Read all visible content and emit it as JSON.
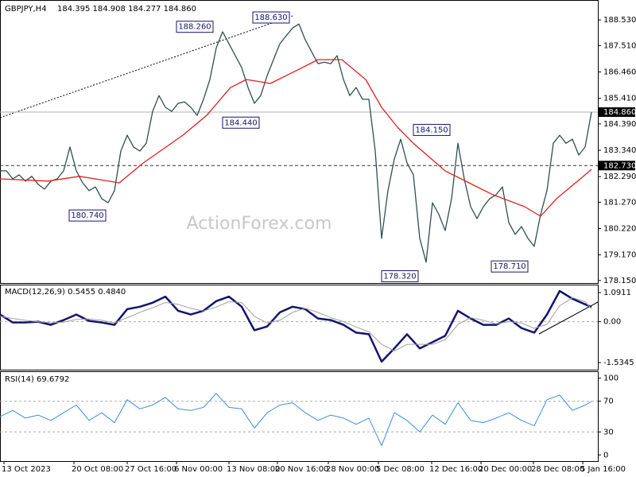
{
  "chart_data": [
    {
      "type": "line",
      "title": "GBPJPY,H4",
      "subtitle": "184.395 184.908 184.277 184.860",
      "watermark": "ActionForex.com",
      "x": [
        0,
        8,
        16,
        24,
        32,
        40,
        48,
        56,
        64,
        72,
        80,
        88,
        96,
        104,
        112,
        120,
        128,
        136,
        144,
        152,
        160,
        168,
        176,
        184,
        192,
        200,
        208,
        216,
        224,
        232,
        240,
        248,
        256,
        264,
        272,
        280,
        288,
        296,
        304,
        312,
        320,
        328,
        336,
        344,
        352,
        360,
        368,
        376,
        384,
        392,
        400,
        408,
        416,
        424,
        432,
        440,
        448,
        456,
        464,
        472,
        480,
        488,
        496,
        504,
        512,
        520,
        528,
        536,
        544,
        552,
        560,
        568,
        576,
        584,
        592,
        600,
        608,
        616,
        624,
        632,
        640,
        648,
        656,
        664,
        672,
        680,
        688,
        696,
        704,
        712,
        720,
        728,
        736,
        744
      ],
      "xlim": [
        0,
        752
      ],
      "ylim": [
        178.05,
        189.2
      ],
      "yticks": [
        {
          "value": 188.53,
          "label": "188.530"
        },
        {
          "value": 187.51,
          "label": "187.510"
        },
        {
          "value": 186.46,
          "label": "186.460"
        },
        {
          "value": 185.41,
          "label": "185.410"
        },
        {
          "value": 184.39,
          "label": "184.390"
        },
        {
          "value": 183.34,
          "label": "183.340"
        },
        {
          "value": 182.29,
          "label": "182.290"
        },
        {
          "value": 181.27,
          "label": "181.270"
        },
        {
          "value": 180.22,
          "label": "180.220"
        },
        {
          "value": 179.17,
          "label": "179.170"
        },
        {
          "value": 178.15,
          "label": "178.150"
        }
      ],
      "series": [
        {
          "color": "#2f4f4f",
          "values": [
            182.52,
            182.52,
            182.2,
            182.36,
            182.11,
            182.3,
            181.98,
            181.79,
            182.11,
            182.2,
            182.52,
            183.47,
            182.52,
            182.04,
            181.73,
            181.88,
            181.41,
            181.25,
            181.73,
            183.31,
            183.94,
            183.47,
            183.31,
            183.62,
            184.89,
            185.52,
            185.05,
            184.89,
            185.21,
            185.27,
            185.05,
            184.73,
            185.37,
            186.16,
            187.42,
            188.06,
            187.58,
            187.11,
            186.63,
            185.84,
            185.21,
            185.52,
            186.31,
            186.95,
            187.58,
            187.9,
            188.21,
            188.37,
            187.74,
            187.26,
            186.79,
            186.85,
            186.79,
            187.11,
            186.16,
            185.52,
            185.84,
            185.37,
            185.37,
            183.31,
            179.83,
            181.73,
            182.99,
            183.78,
            182.83,
            182.36,
            179.83,
            178.88,
            181.25,
            180.78,
            180.14,
            181.41,
            183.62,
            182.2,
            181.09,
            180.62,
            181.09,
            181.41,
            181.57,
            181.88,
            180.46,
            179.99,
            180.3,
            179.83,
            179.51,
            180.78,
            181.73,
            183.62,
            183.94,
            183.62,
            183.78,
            183.15,
            183.47,
            184.86
          ]
        },
        {
          "color": "#e02020",
          "x": [
            0,
            60,
            100,
            150,
            180,
            230,
            260,
            290,
            310,
            340,
            370,
            400,
            430,
            460,
            480,
            500,
            520,
            560,
            590,
            620,
            660,
            680,
            700,
            730,
            744
          ],
          "values": [
            182.2,
            182.11,
            182.3,
            182.04,
            182.83,
            183.94,
            184.73,
            185.84,
            186.16,
            186.0,
            186.47,
            186.95,
            186.95,
            186.16,
            185.05,
            184.26,
            183.62,
            182.52,
            182.04,
            181.57,
            181.09,
            180.71,
            181.41,
            182.2,
            182.58
          ]
        }
      ],
      "levels": [
        {
          "value": 184.86,
          "label": "184.860",
          "style": "solid"
        },
        {
          "value": 182.73,
          "label": "182.730",
          "style": "dashed"
        }
      ],
      "annotations": [
        {
          "value": 188.26,
          "label": "188.260"
        },
        {
          "value": 188.63,
          "label": "188.630"
        },
        {
          "value": 184.44,
          "label": "184.440"
        },
        {
          "value": 184.15,
          "label": "184.150"
        },
        {
          "value": 180.74,
          "label": "180.740"
        },
        {
          "value": 178.32,
          "label": "178.320"
        },
        {
          "value": 178.71,
          "label": "178.710"
        }
      ]
    },
    {
      "type": "line",
      "title": "MACD(12,26,9) 0.5455 0.4840",
      "x": [
        0,
        16,
        32,
        48,
        64,
        80,
        96,
        112,
        128,
        144,
        160,
        176,
        192,
        208,
        224,
        240,
        256,
        272,
        288,
        304,
        320,
        336,
        352,
        368,
        384,
        400,
        416,
        432,
        448,
        464,
        480,
        496,
        512,
        528,
        544,
        560,
        576,
        592,
        608,
        624,
        640,
        656,
        672,
        688,
        704,
        720,
        736,
        744
      ],
      "xlim": [
        0,
        752
      ],
      "ylim": [
        -1.8,
        1.36
      ],
      "yticks": [
        1.0911,
        {
          "value": 0,
          "label": "0.00"
        },
        -1.5345
      ],
      "zero_line": true,
      "series": [
        {
          "color": "#14146e",
          "width": 2.5,
          "values": [
            0.27,
            -0.03,
            -0.03,
            0,
            -0.12,
            0.06,
            0.27,
            0.03,
            -0.03,
            -0.12,
            0.47,
            0.56,
            0.71,
            0.94,
            0.41,
            0.27,
            0.41,
            0.77,
            0.94,
            0.56,
            -0.32,
            -0.18,
            0.35,
            0.56,
            0.47,
            0.12,
            0.06,
            -0.12,
            -0.41,
            -0.47,
            -1.5,
            -1.0,
            -0.47,
            -1.0,
            -0.77,
            -0.53,
            0.41,
            0.12,
            -0.12,
            -0.12,
            0.12,
            -0.24,
            -0.41,
            0.27,
            1.15,
            0.86,
            0.65,
            0.55
          ]
        },
        {
          "color": "#a0a0a0",
          "width": 1,
          "values": [
            0.2,
            0.12,
            0.05,
            0,
            -0.04,
            -0.02,
            0.08,
            0.1,
            0.05,
            -0.04,
            0.15,
            0.35,
            0.52,
            0.72,
            0.65,
            0.5,
            0.4,
            0.55,
            0.75,
            0.72,
            0.2,
            -0.05,
            0.05,
            0.35,
            0.5,
            0.35,
            0.15,
            0,
            -0.2,
            -0.38,
            -0.85,
            -1.1,
            -0.85,
            -0.85,
            -0.85,
            -0.68,
            -0.1,
            0.15,
            0.05,
            -0.08,
            0,
            -0.05,
            -0.25,
            -0.1,
            0.6,
            0.9,
            0.75,
            0.48
          ]
        }
      ]
    },
    {
      "type": "line",
      "title": "RSI(14) 69.6792",
      "x": [
        0,
        16,
        32,
        48,
        64,
        80,
        96,
        112,
        128,
        144,
        160,
        176,
        192,
        208,
        224,
        240,
        256,
        272,
        288,
        304,
        320,
        336,
        352,
        368,
        384,
        400,
        416,
        432,
        448,
        464,
        480,
        496,
        512,
        528,
        544,
        560,
        576,
        592,
        608,
        624,
        640,
        656,
        672,
        688,
        704,
        720,
        736,
        744
      ],
      "xlim": [
        0,
        752
      ],
      "ylim": [
        -8,
        108
      ],
      "yticks": [
        100,
        70,
        30,
        0
      ],
      "dashed_ticks": [
        70,
        30
      ],
      "xticks": [
        {
          "value": 5,
          "label": "13 Oct 2023"
        },
        {
          "value": 93,
          "label": "20 Oct 08:00"
        },
        {
          "value": 160,
          "label": "27 Oct 16:00"
        },
        {
          "value": 222,
          "label": "6 Nov 00:00"
        },
        {
          "value": 288,
          "label": "13 Nov 08:00"
        },
        {
          "value": 349,
          "label": "20 Nov 16:00"
        },
        {
          "value": 413,
          "label": "28 Nov 00:00"
        },
        {
          "value": 476,
          "label": "5 Dec 08:00"
        },
        {
          "value": 543,
          "label": "12 Dec 16:00"
        },
        {
          "value": 605,
          "label": "20 Dec 00:00"
        },
        {
          "value": 671,
          "label": "28 Dec 08:00"
        },
        {
          "value": 733,
          "label": "5 Jan 16:00"
        }
      ],
      "series": [
        {
          "color": "#3c8ce6",
          "width": 1,
          "values": [
            50,
            58,
            48,
            52,
            45,
            55,
            65,
            45,
            55,
            42,
            72,
            60,
            65,
            75,
            60,
            58,
            62,
            80,
            62,
            60,
            35,
            55,
            65,
            68,
            55,
            45,
            52,
            48,
            40,
            48,
            12,
            55,
            45,
            30,
            52,
            40,
            68,
            45,
            42,
            48,
            55,
            45,
            38,
            72,
            78,
            58,
            65,
            69.6792
          ]
        }
      ]
    }
  ]
}
